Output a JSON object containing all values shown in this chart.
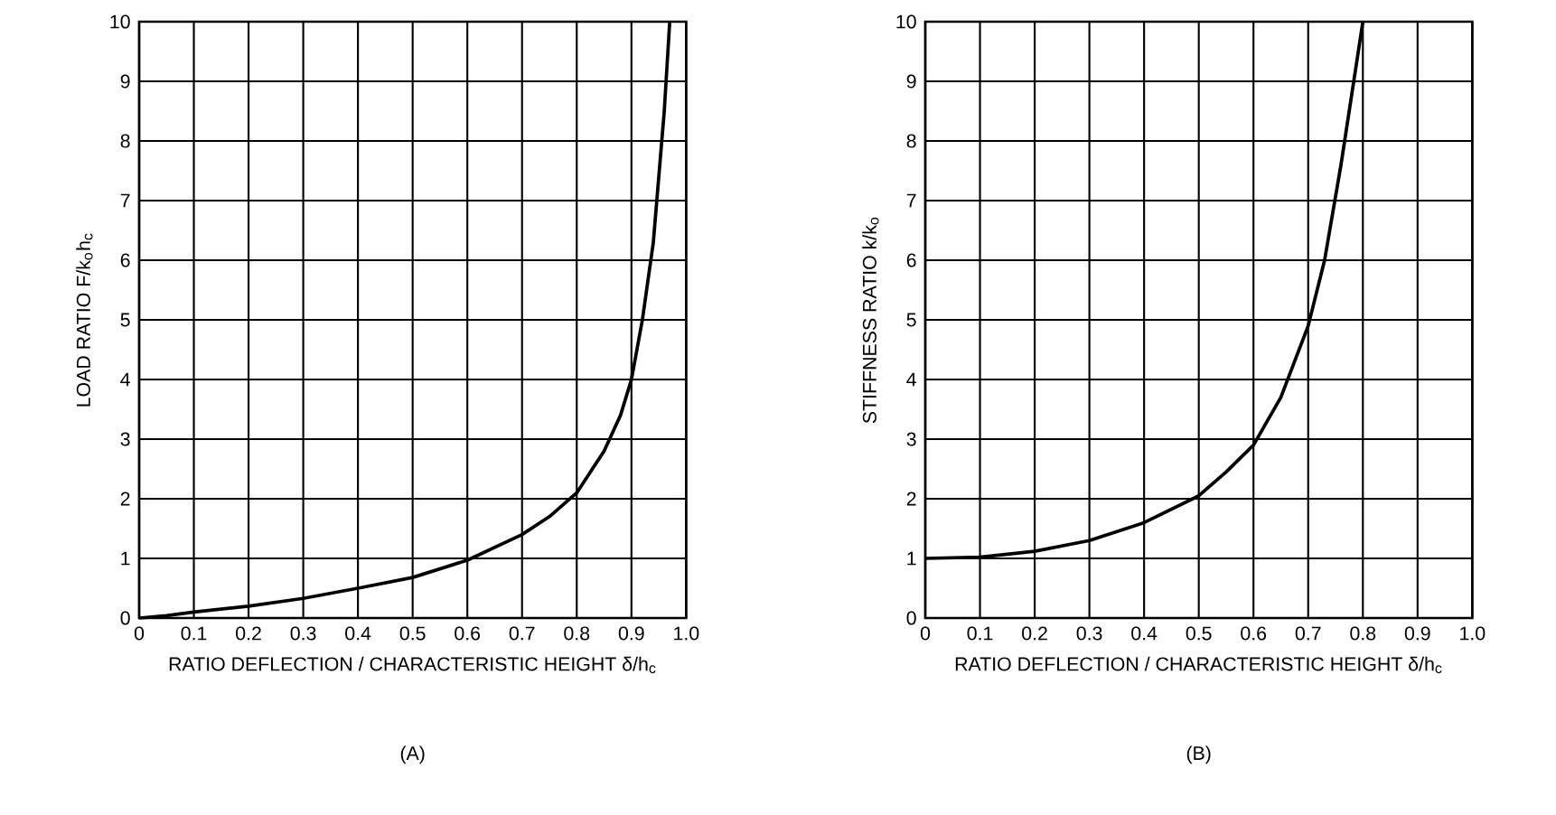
{
  "chart_data": [
    {
      "type": "line",
      "xlabel": "RATIO  DEFLECTION / CHARACTERISTIC HEIGHT  δ/h$_{c}$",
      "ylabel": "LOAD RATIO  F/k$_{o}$h$_{c}$",
      "annotations": [
        "(A)"
      ],
      "x": [
        0,
        0.05,
        0.1,
        0.2,
        0.3,
        0.4,
        0.5,
        0.6,
        0.7,
        0.75,
        0.8,
        0.85,
        0.88,
        0.9,
        0.92,
        0.94,
        0.96,
        0.97
      ],
      "series": [
        {
          "color": "#000000",
          "values": [
            0,
            0.04,
            0.1,
            0.2,
            0.33,
            0.5,
            0.68,
            0.97,
            1.4,
            1.7,
            2.1,
            2.8,
            3.4,
            4.0,
            5.0,
            6.3,
            8.5,
            10
          ]
        }
      ],
      "xlim": [
        0,
        1
      ],
      "ylim": [
        0,
        10
      ],
      "xticks": [
        0,
        0.1,
        0.2,
        0.3,
        0.4,
        0.5,
        0.6,
        0.7,
        0.8,
        0.9,
        {
          "value": 1,
          "label": "1.0"
        }
      ],
      "yticks": [
        0,
        1,
        2,
        3,
        4,
        5,
        6,
        7,
        8,
        9,
        10
      ],
      "grid": true,
      "marker": "none",
      "line_style": "solid"
    },
    {
      "type": "line",
      "xlabel": "RATIO  DEFLECTION / CHARACTERISTIC HEIGHT  δ/h$_{c}$",
      "ylabel": "STIFFNESS RATIO  k/k$_{o}$",
      "annotations": [
        "(B)"
      ],
      "x": [
        0,
        0.1,
        0.2,
        0.3,
        0.4,
        0.5,
        0.55,
        0.6,
        0.65,
        0.7,
        0.73,
        0.76,
        0.78,
        0.8
      ],
      "series": [
        {
          "color": "#000000",
          "values": [
            1,
            1.02,
            1.12,
            1.3,
            1.6,
            2.05,
            2.45,
            2.9,
            3.7,
            4.9,
            6.0,
            7.6,
            8.8,
            10
          ]
        }
      ],
      "xlim": [
        0,
        1
      ],
      "ylim": [
        0,
        10
      ],
      "xticks": [
        0,
        0.1,
        0.2,
        0.3,
        0.4,
        0.5,
        0.6,
        0.7,
        0.8,
        0.9,
        {
          "value": 1,
          "label": "1.0"
        }
      ],
      "yticks": [
        0,
        1,
        2,
        3,
        4,
        5,
        6,
        7,
        8,
        9,
        10
      ],
      "grid": true,
      "marker": "none",
      "line_style": "solid"
    }
  ]
}
